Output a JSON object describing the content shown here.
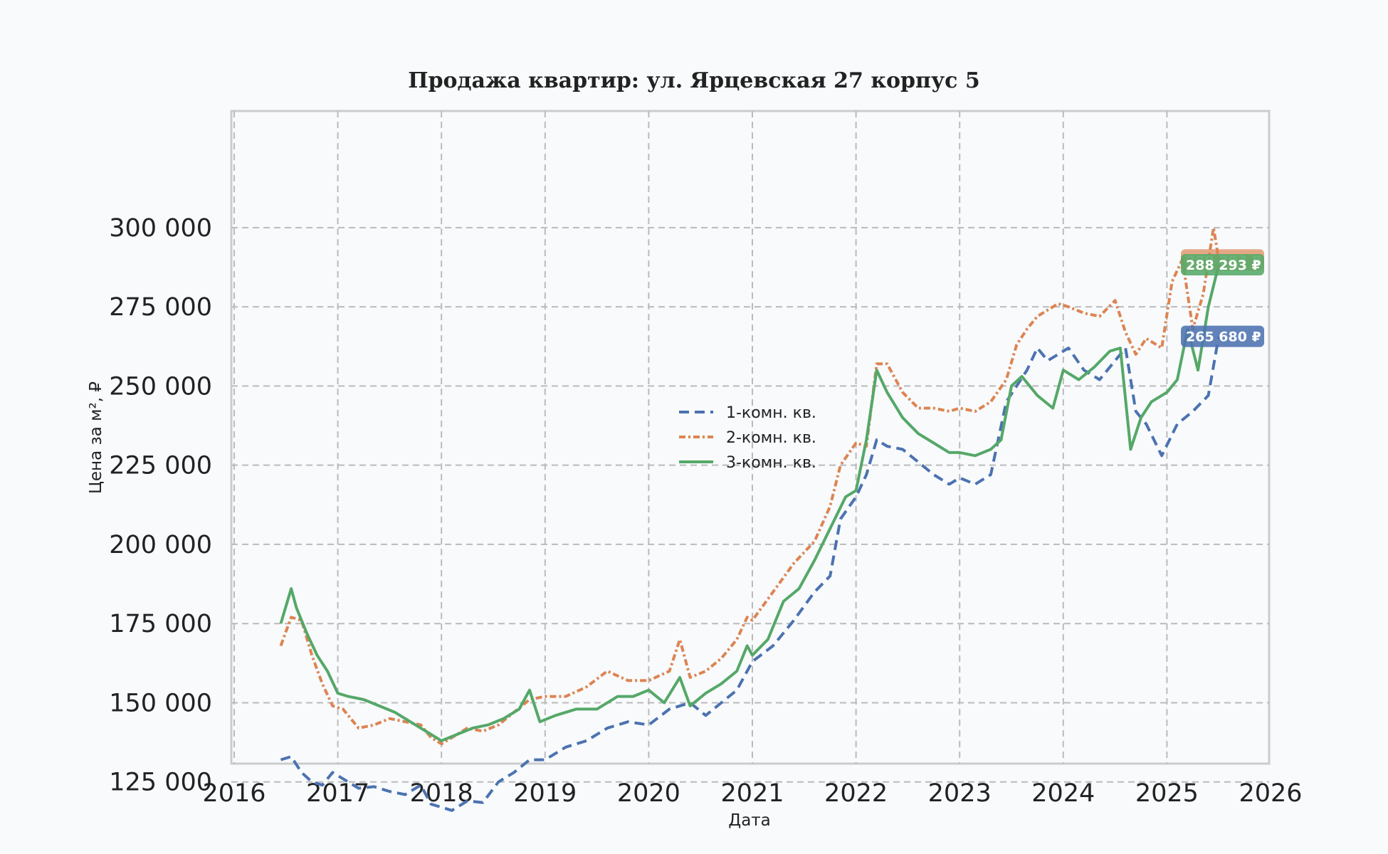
{
  "chart_data": {
    "type": "line",
    "title": "Продажа квартир: ул. Ярцевская 27 корпус 5",
    "xlabel": "Дата",
    "ylabel": "Цена за м², ₽",
    "xlim": [
      2016,
      2026
    ],
    "ylim": [
      105000,
      312000
    ],
    "x_ticks": [
      2016,
      2017,
      2018,
      2019,
      2020,
      2021,
      2022,
      2023,
      2024,
      2025,
      2026
    ],
    "x_tick_labels": [
      "2016",
      "2017",
      "2018",
      "2019",
      "2020",
      "2021",
      "2022",
      "2023",
      "2024",
      "2025",
      "2026"
    ],
    "y_ticks": [
      125000,
      150000,
      175000,
      200000,
      225000,
      250000,
      275000,
      300000
    ],
    "y_tick_labels": [
      "125 000",
      "150 000",
      "175 000",
      "200 000",
      "225 000",
      "250 000",
      "275 000",
      "300 000"
    ],
    "grid": true,
    "legend_position": "center",
    "series": [
      {
        "name": "1-комн. кв.",
        "color": "#4c72b0",
        "style": "dashed",
        "x": [
          2016.45,
          2016.55,
          2016.65,
          2016.75,
          2016.85,
          2016.95,
          2017.05,
          2017.2,
          2017.35,
          2017.5,
          2017.65,
          2017.8,
          2017.9,
          2018.0,
          2018.1,
          2018.25,
          2018.4,
          2018.55,
          2018.7,
          2018.85,
          2019.0,
          2019.2,
          2019.4,
          2019.6,
          2019.8,
          2020.0,
          2020.2,
          2020.4,
          2020.55,
          2020.7,
          2020.85,
          2021.0,
          2021.2,
          2021.4,
          2021.6,
          2021.75,
          2021.85,
          2022.0,
          2022.1,
          2022.2,
          2022.3,
          2022.45,
          2022.6,
          2022.75,
          2022.9,
          2023.0,
          2023.15,
          2023.3,
          2023.45,
          2023.55,
          2023.65,
          2023.75,
          2023.85,
          2023.95,
          2024.05,
          2024.2,
          2024.35,
          2024.5,
          2024.6,
          2024.7,
          2024.8,
          2024.95,
          2025.1,
          2025.25,
          2025.4,
          2025.5
        ],
        "y": [
          132000,
          133000,
          128000,
          125000,
          124000,
          128000,
          126000,
          123000,
          123500,
          122000,
          121000,
          124000,
          118000,
          117000,
          116000,
          119000,
          118500,
          125000,
          128000,
          132000,
          132000,
          136000,
          138000,
          142000,
          144000,
          143000,
          148000,
          150000,
          146000,
          150000,
          154000,
          163000,
          168000,
          176000,
          185000,
          190000,
          208000,
          215000,
          222000,
          233000,
          231000,
          230000,
          226000,
          222000,
          219000,
          221000,
          219000,
          222000,
          245000,
          250000,
          255000,
          262000,
          258000,
          260000,
          262000,
          255000,
          252000,
          258000,
          262000,
          242000,
          238000,
          228000,
          238000,
          242000,
          247000,
          265680
        ]
      },
      {
        "name": "2-комн. кв.",
        "color": "#dd8452",
        "style": "dash-dot",
        "x": [
          2016.45,
          2016.55,
          2016.65,
          2016.75,
          2016.85,
          2016.95,
          2017.05,
          2017.2,
          2017.35,
          2017.5,
          2017.65,
          2017.8,
          2017.9,
          2018.0,
          2018.1,
          2018.25,
          2018.4,
          2018.55,
          2018.7,
          2018.85,
          2019.0,
          2019.2,
          2019.4,
          2019.6,
          2019.8,
          2020.0,
          2020.2,
          2020.3,
          2020.4,
          2020.55,
          2020.7,
          2020.85,
          2020.95,
          2021.0,
          2021.2,
          2021.4,
          2021.6,
          2021.75,
          2021.85,
          2022.0,
          2022.1,
          2022.2,
          2022.3,
          2022.45,
          2022.6,
          2022.75,
          2022.9,
          2023.0,
          2023.15,
          2023.3,
          2023.45,
          2023.55,
          2023.65,
          2023.75,
          2023.85,
          2023.95,
          2024.05,
          2024.2,
          2024.35,
          2024.5,
          2024.6,
          2024.7,
          2024.8,
          2024.95,
          2025.05,
          2025.15,
          2025.25,
          2025.35,
          2025.45,
          2025.5
        ],
        "y": [
          168000,
          177000,
          176000,
          165000,
          156000,
          149000,
          148000,
          142000,
          143000,
          145000,
          144000,
          143000,
          139000,
          137000,
          139000,
          142000,
          141000,
          143000,
          147000,
          151000,
          152000,
          152000,
          155000,
          160000,
          157000,
          157000,
          160000,
          170000,
          158000,
          160000,
          164000,
          170000,
          177000,
          176000,
          185000,
          194000,
          201000,
          212000,
          225000,
          232000,
          231000,
          257000,
          257000,
          248000,
          243000,
          243000,
          242000,
          243000,
          242000,
          245000,
          252000,
          263000,
          268000,
          272000,
          274000,
          276000,
          275000,
          273000,
          272000,
          277000,
          267000,
          260000,
          265000,
          262000,
          283000,
          290000,
          268000,
          279000,
          300000,
          289793
        ]
      },
      {
        "name": "3-комн. кв.",
        "color": "#55a868",
        "style": "solid-marker",
        "x": [
          2016.45,
          2016.55,
          2016.6,
          2016.7,
          2016.8,
          2016.9,
          2017.0,
          2017.1,
          2017.25,
          2017.4,
          2017.55,
          2017.7,
          2017.85,
          2018.0,
          2018.15,
          2018.3,
          2018.45,
          2018.6,
          2018.75,
          2018.85,
          2018.95,
          2019.1,
          2019.3,
          2019.5,
          2019.7,
          2019.85,
          2020.0,
          2020.15,
          2020.3,
          2020.4,
          2020.55,
          2020.7,
          2020.85,
          2020.95,
          2021.0,
          2021.15,
          2021.3,
          2021.45,
          2021.6,
          2021.75,
          2021.9,
          2022.0,
          2022.1,
          2022.2,
          2022.3,
          2022.45,
          2022.6,
          2022.75,
          2022.9,
          2023.0,
          2023.15,
          2023.3,
          2023.4,
          2023.5,
          2023.6,
          2023.75,
          2023.9,
          2024.0,
          2024.15,
          2024.3,
          2024.45,
          2024.55,
          2024.65,
          2024.75,
          2024.85,
          2025.0,
          2025.1,
          2025.2,
          2025.3,
          2025.4,
          2025.5
        ],
        "y": [
          175000,
          186000,
          180000,
          172000,
          165000,
          160000,
          153000,
          152000,
          151000,
          149000,
          147000,
          144000,
          141000,
          138000,
          140000,
          142000,
          143000,
          145000,
          148000,
          154000,
          144000,
          146000,
          148000,
          148000,
          152000,
          152000,
          154000,
          150000,
          158000,
          149000,
          153000,
          156000,
          160000,
          168000,
          165000,
          170000,
          182000,
          186000,
          195000,
          205000,
          215000,
          217000,
          233000,
          255000,
          248000,
          240000,
          235000,
          232000,
          229000,
          229000,
          228000,
          230000,
          233000,
          250000,
          253000,
          247000,
          243000,
          255000,
          252000,
          256000,
          261000,
          262000,
          230000,
          240000,
          245000,
          248000,
          252000,
          268000,
          255000,
          275000,
          288293
        ]
      }
    ],
    "end_labels": [
      {
        "series": "2-комн. кв.",
        "value": 289793,
        "text": "289 793 ₽"
      },
      {
        "series": "3-комн. кв.",
        "value": 288293,
        "text": "288 293 ₽"
      },
      {
        "series": "1-комн. кв.",
        "value": 265680,
        "text": "265 680 ₽"
      }
    ]
  }
}
